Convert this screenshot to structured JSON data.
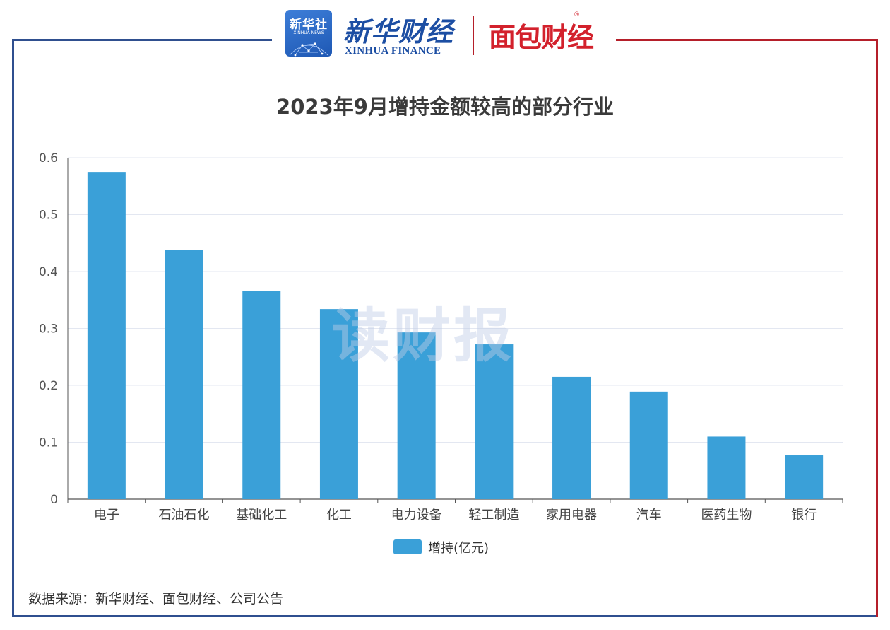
{
  "header": {
    "xinhua_news_cn": "新华社",
    "xinhua_news_en": "XINHUA NEWS",
    "xinhua_finance_cn": "新华财经",
    "xinhua_finance_en": "XINHUA FINANCE",
    "mianbao_logo": "面包财经",
    "registered_mark": "®"
  },
  "watermark": "读财报",
  "legend": {
    "label": "增持(亿元)"
  },
  "source_note": "数据来源：新华财经、面包财经、公司公告",
  "colors": {
    "bar": "#3aa0d8",
    "frame_left": "#2f4f8f",
    "frame_right": "#b51f2a"
  },
  "chart_data": {
    "type": "bar",
    "title": "2023年9月增持金额较高的部分行业",
    "categories": [
      "电子",
      "石油石化",
      "基础化工",
      "化工",
      "电力设备",
      "轻工制造",
      "家用电器",
      "汽车",
      "医药生物",
      "银行"
    ],
    "series": [
      {
        "name": "增持(亿元)",
        "values": [
          0.575,
          0.438,
          0.366,
          0.334,
          0.293,
          0.272,
          0.215,
          0.189,
          0.11,
          0.077
        ]
      }
    ],
    "ylim": [
      0,
      0.6
    ],
    "yticks": [
      "0",
      "0.1",
      "0.2",
      "0.3",
      "0.4",
      "0.5",
      "0.6"
    ],
    "grid": true,
    "legend_position": "bottom-center"
  }
}
